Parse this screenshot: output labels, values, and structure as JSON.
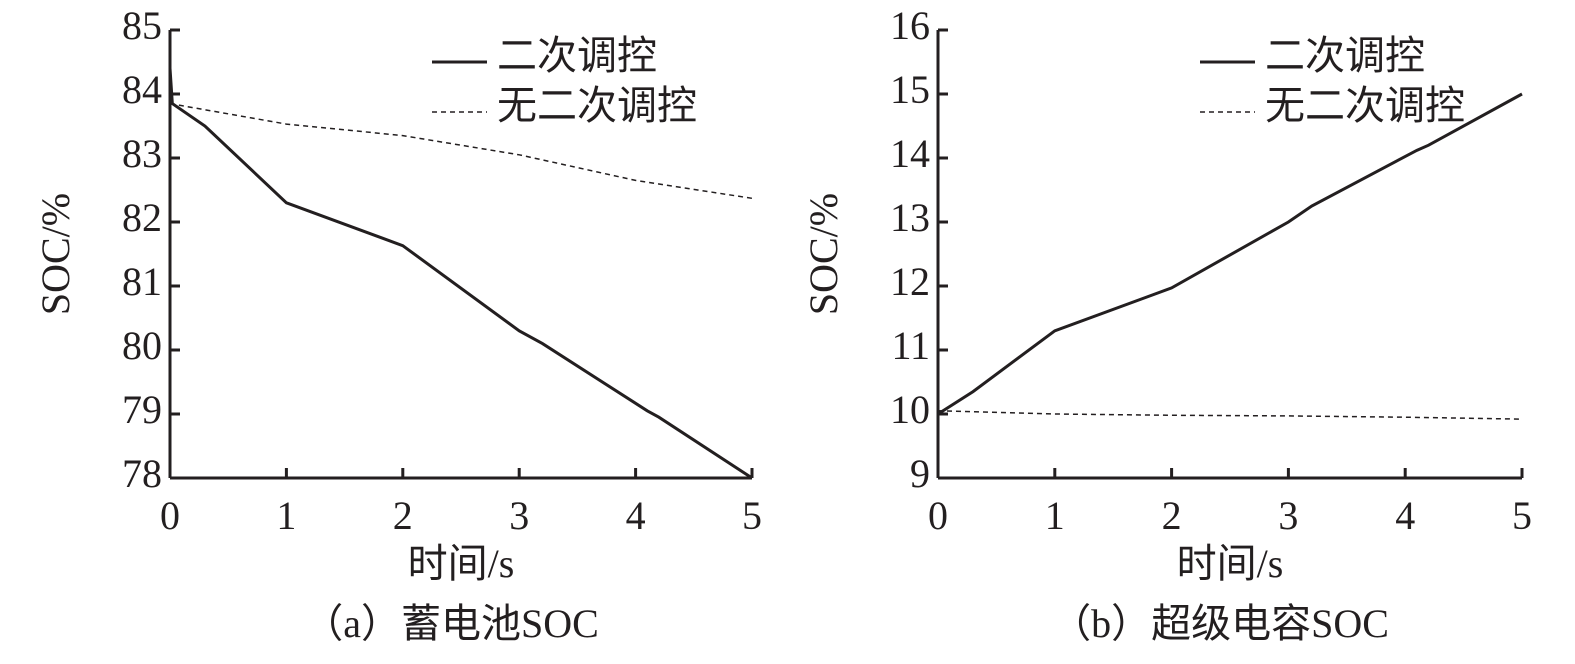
{
  "chart_data": [
    {
      "type": "line",
      "caption": "（a）蓄电池SOC",
      "xlabel": "时间/s",
      "ylabel": "SOC/%",
      "xlim": [
        0,
        5
      ],
      "xticks": [
        0,
        1,
        2,
        3,
        4,
        5
      ],
      "ylim": [
        78,
        85
      ],
      "yticks": [
        78,
        79,
        80,
        81,
        82,
        83,
        84,
        85
      ],
      "series": [
        {
          "name": "二次调控",
          "color": "#231f20",
          "style": "solid",
          "x": [
            0,
            0.02,
            0.3,
            1,
            2,
            3,
            3.2,
            4.1,
            4.2,
            5
          ],
          "values": [
            84.4,
            83.85,
            83.5,
            82.3,
            81.63,
            80.3,
            80.1,
            79.05,
            78.95,
            78.0
          ]
        },
        {
          "name": "无二次调控",
          "color": "#231f20",
          "style": "dashed",
          "x": [
            0,
            1,
            2,
            3,
            4,
            5
          ],
          "values": [
            83.85,
            83.53,
            83.35,
            83.05,
            82.65,
            82.37
          ]
        }
      ]
    },
    {
      "type": "line",
      "caption": "（b）超级电容SOC",
      "xlabel": "时间/s",
      "ylabel": "SOC/%",
      "xlim": [
        0,
        5
      ],
      "xticks": [
        0,
        1,
        2,
        3,
        4,
        5
      ],
      "ylim": [
        9,
        16
      ],
      "yticks": [
        9,
        10,
        11,
        12,
        13,
        14,
        15,
        16
      ],
      "series": [
        {
          "name": "二次调控",
          "color": "#231f20",
          "style": "solid",
          "x": [
            0,
            0.3,
            1,
            2,
            3,
            3.2,
            4.1,
            4.2,
            5
          ],
          "values": [
            10,
            10.35,
            11.3,
            11.97,
            13.0,
            13.25,
            14.12,
            14.2,
            15.0
          ]
        },
        {
          "name": "无二次调控",
          "color": "#231f20",
          "style": "dashed",
          "x": [
            0,
            1,
            2,
            3,
            4,
            5
          ],
          "values": [
            10.05,
            10.0,
            9.98,
            9.97,
            9.95,
            9.92
          ]
        }
      ]
    }
  ]
}
